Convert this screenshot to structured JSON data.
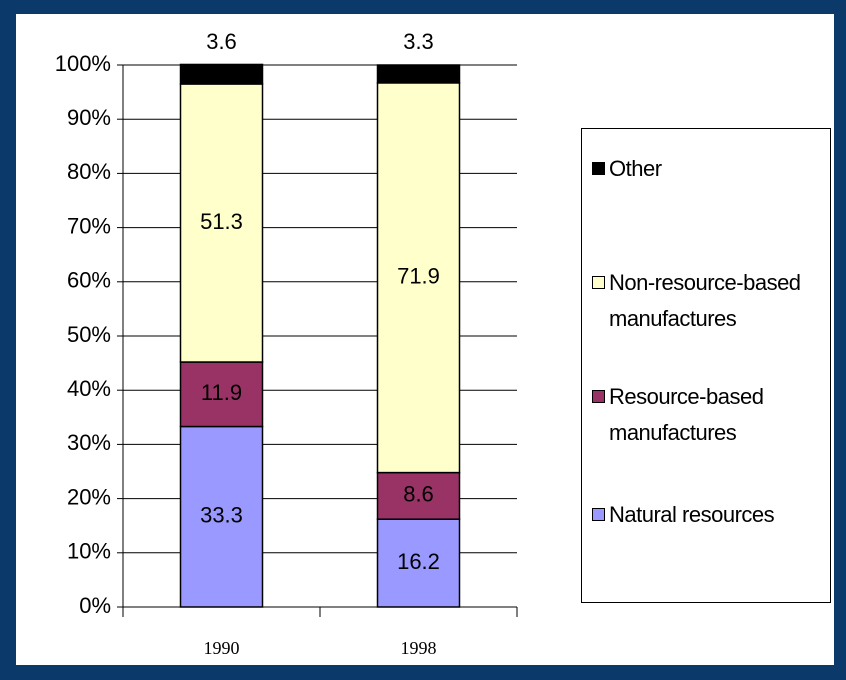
{
  "chart_data": {
    "type": "stacked_bar",
    "categories": [
      "1990",
      "1998"
    ],
    "series": [
      {
        "name": "Natural resources",
        "color": "#9999ff",
        "values": [
          33.3,
          16.2
        ]
      },
      {
        "name": "Resource-based manufactures",
        "color": "#993366",
        "values": [
          11.9,
          8.6
        ]
      },
      {
        "name": "Non-resource-based manufactures",
        "color": "#ffffcc",
        "values": [
          51.3,
          71.9
        ]
      },
      {
        "name": "Other",
        "color": "#000000",
        "values": [
          3.6,
          3.3
        ]
      }
    ],
    "ylim": [
      0,
      100
    ],
    "yticks": [
      {
        "value": 0,
        "label": "0%"
      },
      {
        "value": 10,
        "label": "10%"
      },
      {
        "value": 20,
        "label": "20%"
      },
      {
        "value": 30,
        "label": "30%"
      },
      {
        "value": 40,
        "label": "40%"
      },
      {
        "value": 50,
        "label": "50%"
      },
      {
        "value": 60,
        "label": "60%"
      },
      {
        "value": 70,
        "label": "70%"
      },
      {
        "value": 80,
        "label": "80%"
      },
      {
        "value": 90,
        "label": "90%"
      },
      {
        "value": 100,
        "label": "100%"
      }
    ],
    "grid": true,
    "legend": "right"
  }
}
